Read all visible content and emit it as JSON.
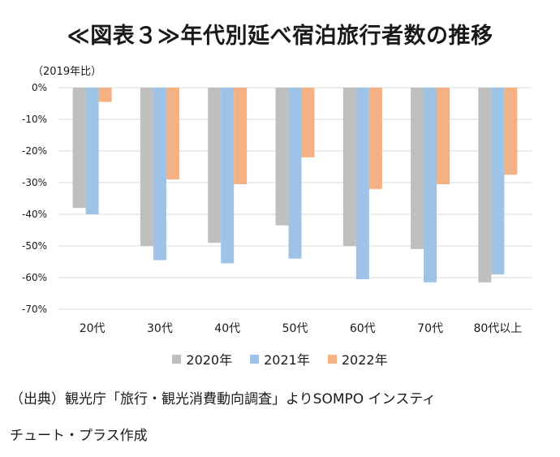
{
  "title": "≪図表３≫年代別延べ宿泊旅行者数の推移",
  "unit_label": "（2019年比）",
  "colors": {
    "s2020": "#bfbfbf",
    "s2021": "#9dc3e6",
    "s2022": "#f4b183",
    "grid": "#d9d9d9"
  },
  "chart_data": {
    "type": "bar",
    "categories": [
      "20代",
      "30代",
      "40代",
      "50代",
      "60代",
      "70代",
      "80代以上"
    ],
    "series": [
      {
        "name": "2020年",
        "values": [
          -38,
          -50,
          -49,
          -43.5,
          -50,
          -51,
          -61.5
        ]
      },
      {
        "name": "2021年",
        "values": [
          -40,
          -54.5,
          -55.5,
          -54,
          -60.5,
          -61.5,
          -59
        ]
      },
      {
        "name": "2022年",
        "values": [
          -4.5,
          -29,
          -30.5,
          -22,
          -32,
          -30.5,
          -27.5
        ]
      }
    ],
    "ylim": [
      -70,
      0
    ],
    "yticks": [
      0,
      -10,
      -20,
      -30,
      -40,
      -50,
      -60,
      -70
    ],
    "ytick_labels": [
      "0%",
      "-10%",
      "-20%",
      "-30%",
      "-40%",
      "-50%",
      "-60%",
      "-70%"
    ],
    "grid": true,
    "legend": "bottom"
  },
  "source_line1": "（出典）観光庁「旅行・観光消費動向調査」よりSOMPO インスティ",
  "source_line2": "チュート・プラス作成"
}
